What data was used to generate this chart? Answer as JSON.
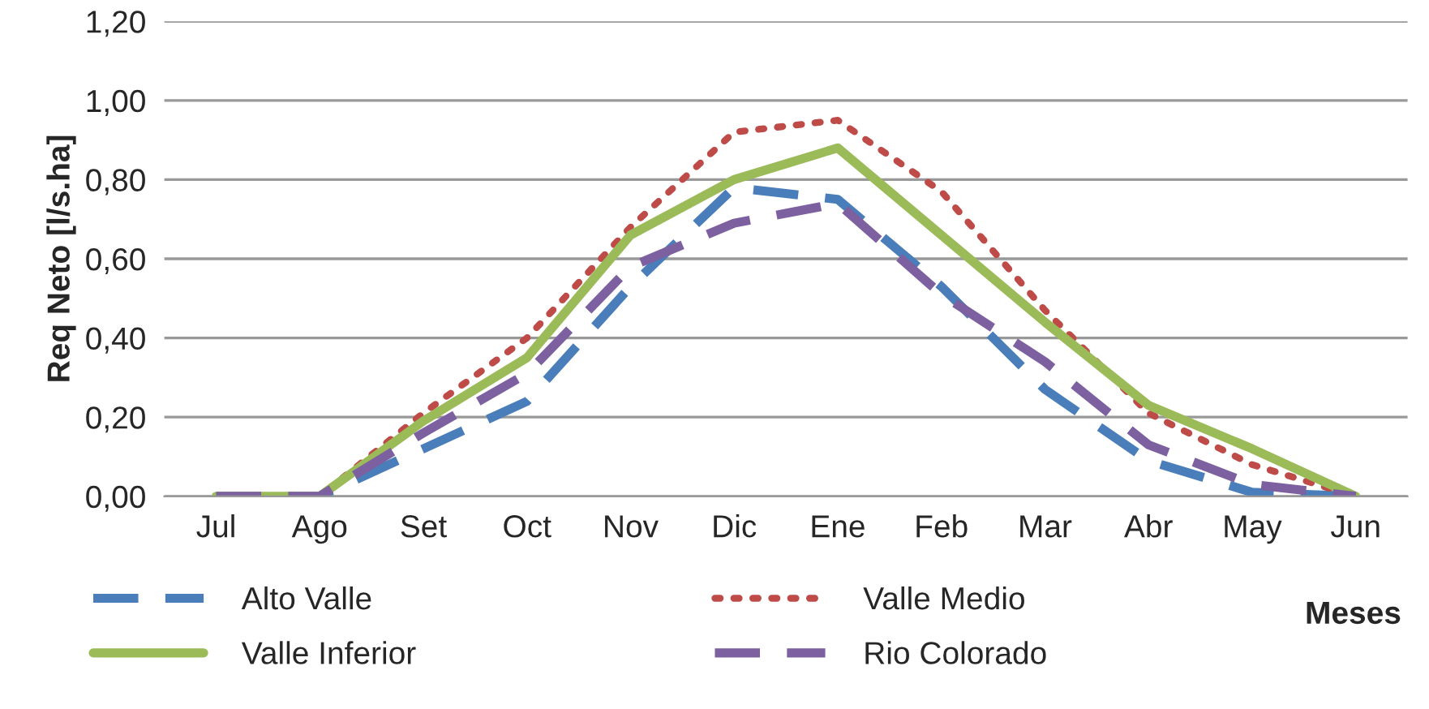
{
  "chart_data": {
    "type": "line",
    "xlabel": "Meses",
    "ylabel": "Req Neto [l/s.ha]",
    "categories": [
      "Jul",
      "Ago",
      "Set",
      "Oct",
      "Nov",
      "Dic",
      "Ene",
      "Feb",
      "Mar",
      "Abr",
      "May",
      "Jun"
    ],
    "series": [
      {
        "name": "Alto Valle",
        "color": "#4a7ebb",
        "line_style": "dashed",
        "values": [
          0,
          0,
          0.12,
          0.24,
          0.53,
          0.78,
          0.75,
          0.53,
          0.27,
          0.09,
          0.01,
          0
        ]
      },
      {
        "name": "Valle Medio",
        "color": "#be4b48",
        "line_style": "dotted",
        "values": [
          0,
          0,
          0.21,
          0.4,
          0.68,
          0.92,
          0.95,
          0.77,
          0.47,
          0.21,
          0.08,
          0
        ]
      },
      {
        "name": "Valle Inferior",
        "color": "#9bbb59",
        "line_style": "solid",
        "values": [
          0,
          0,
          0.19,
          0.35,
          0.66,
          0.8,
          0.88,
          0.66,
          0.44,
          0.23,
          0.12,
          0
        ]
      },
      {
        "name": "Rio Colorado",
        "color": "#7d60a0",
        "line_style": "dashed",
        "values": [
          0,
          0,
          0.16,
          0.31,
          0.58,
          0.69,
          0.74,
          0.51,
          0.34,
          0.13,
          0.03,
          0
        ]
      }
    ],
    "ylim": [
      0,
      1.2
    ],
    "yticks": [
      {
        "value": 0,
        "label": "0,00"
      },
      {
        "value": 0.2,
        "label": "0,20"
      },
      {
        "value": 0.4,
        "label": "0,40"
      },
      {
        "value": 0.6,
        "label": "0,60"
      },
      {
        "value": 0.8,
        "label": "0,80"
      },
      {
        "value": 1.0,
        "label": "1,00"
      },
      {
        "value": 1.2,
        "label": "1,20"
      }
    ],
    "grid": "y",
    "legend": "bottom",
    "marker": "none"
  }
}
